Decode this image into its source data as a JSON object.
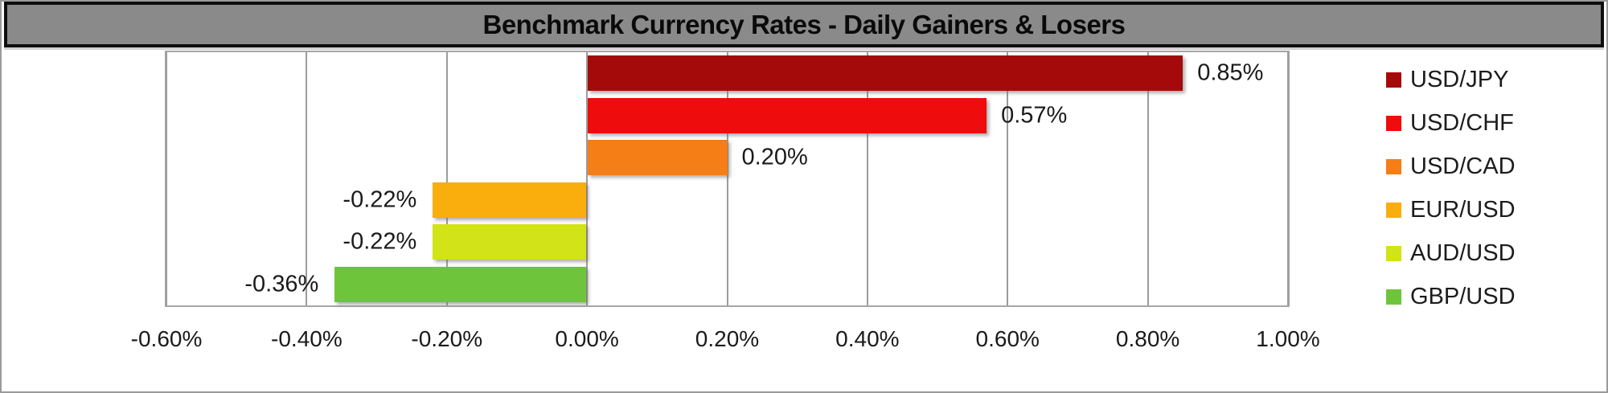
{
  "chart_data": {
    "type": "bar",
    "orientation": "horizontal",
    "title": "Benchmark Currency Rates - Daily Gainers & Losers",
    "categories": [
      "USD/JPY",
      "USD/CHF",
      "USD/CAD",
      "EUR/USD",
      "AUD/USD",
      "GBP/USD"
    ],
    "values": [
      0.85,
      0.57,
      0.2,
      -0.22,
      -0.22,
      -0.36
    ],
    "data_labels": [
      "0.85%",
      "0.57%",
      "0.20%",
      "-0.22%",
      "-0.22%",
      "-0.36%"
    ],
    "bar_colors": [
      "#A50A0A",
      "#EE0C0C",
      "#F57E17",
      "#F9AE0D",
      "#D2E318",
      "#6EC53C"
    ],
    "x_tick_labels": [
      "-0.60%",
      "-0.40%",
      "-0.20%",
      "0.00%",
      "0.20%",
      "0.40%",
      "0.60%",
      "0.80%",
      "1.00%"
    ],
    "x_tick_values": [
      -0.6,
      -0.4,
      -0.2,
      0.0,
      0.2,
      0.4,
      0.6,
      0.8,
      1.0
    ],
    "xlim": [
      -0.6,
      1.0
    ],
    "grid": "vertical",
    "legend_position": "right",
    "legend": [
      {
        "label": "USD/JPY",
        "color": "#A50A0A"
      },
      {
        "label": "USD/CHF",
        "color": "#EE0C0C"
      },
      {
        "label": "USD/CAD",
        "color": "#F57E17"
      },
      {
        "label": "EUR/USD",
        "color": "#F9AE0D"
      },
      {
        "label": "AUD/USD",
        "color": "#D2E318"
      },
      {
        "label": "GBP/USD",
        "color": "#6EC53C"
      }
    ]
  },
  "styles": {
    "title_bar_bg": "#8A8A8A",
    "title_bar_border": "#0E0E0E",
    "gridline_color": "#9C9C9C",
    "plot_border_color": "#A6A6A6",
    "outer_border_color": "#9A9A9A",
    "text_color": "#1A1A1A"
  }
}
